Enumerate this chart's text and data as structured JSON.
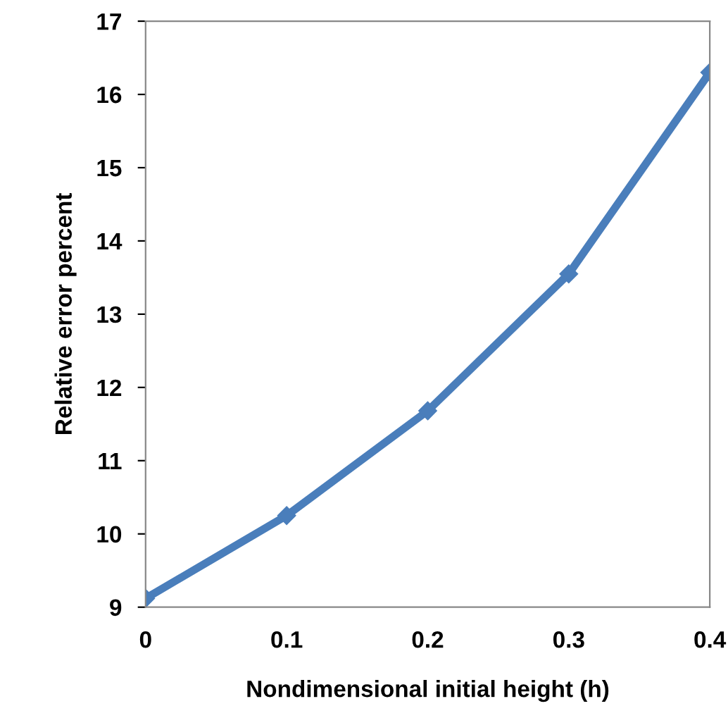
{
  "chart_data": {
    "type": "line",
    "xlabel": "Nondimensional initial height (h)",
    "ylabel": "Relative error percent",
    "x": [
      0,
      0.1,
      0.2,
      0.3,
      0.4
    ],
    "series": [
      {
        "color": "#4a7ebb",
        "values": [
          9.12,
          10.25,
          11.68,
          13.55,
          16.3
        ]
      }
    ],
    "xlim": [
      0,
      0.4
    ],
    "xticks": [
      0,
      0.1,
      0.2,
      0.3,
      0.4
    ],
    "ylim": [
      9,
      17
    ],
    "yticks": [
      9,
      10,
      11,
      12,
      13,
      14,
      15,
      16,
      17
    ],
    "marker": "diamond",
    "line_style": "solid",
    "grid": false,
    "legend": false
  }
}
